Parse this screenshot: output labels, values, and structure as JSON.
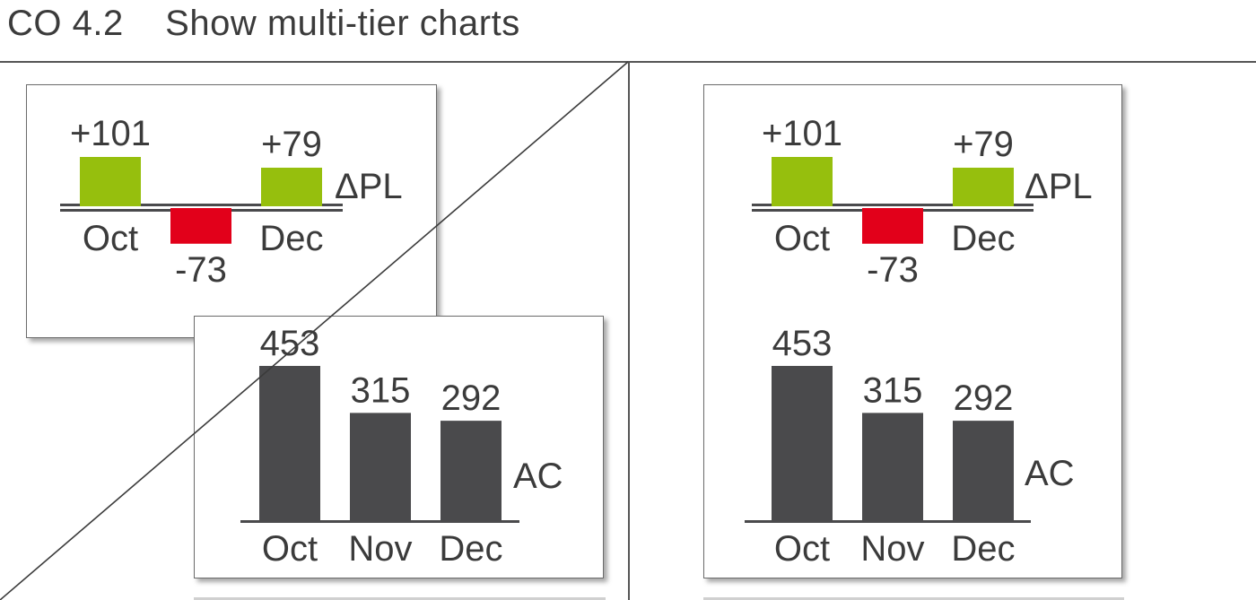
{
  "page": {
    "title": "CO 4.2    Show multi-tier charts"
  },
  "chart_data": [
    {
      "id": "left-delta",
      "type": "bar",
      "categories": [
        "Oct",
        "Nov",
        "Dec"
      ],
      "category_labels": [
        "Oct",
        "",
        "Dec"
      ],
      "values": [
        101,
        -73,
        79
      ],
      "data_labels": [
        "+101",
        "-73",
        "+79"
      ],
      "series_label": "ΔPL",
      "colors": {
        "positive": "#96bf0d",
        "negative": "#e2001a"
      }
    },
    {
      "id": "left-ac",
      "type": "bar",
      "categories": [
        "Oct",
        "Nov",
        "Dec"
      ],
      "values": [
        453,
        315,
        292
      ],
      "data_labels": [
        "453",
        "315",
        "292"
      ],
      "series_label": "AC",
      "colors": {
        "bar": "#4a4a4c"
      }
    },
    {
      "id": "right-delta",
      "type": "bar",
      "categories": [
        "Oct",
        "Nov",
        "Dec"
      ],
      "values": [
        101,
        -73,
        79
      ],
      "data_labels": [
        "+101",
        "-73",
        "+79"
      ],
      "series_label": "ΔPL",
      "colors": {
        "positive": "#96bf0d",
        "negative": "#e2001a"
      }
    },
    {
      "id": "right-ac",
      "type": "bar",
      "categories": [
        "Oct",
        "Nov",
        "Dec"
      ],
      "values": [
        453,
        315,
        292
      ],
      "data_labels": [
        "453",
        "315",
        "292"
      ],
      "series_label": "AC",
      "category_labels": [
        "Oct",
        "Nov",
        "Dec"
      ],
      "colors": {
        "bar": "#4a4a4c"
      }
    }
  ]
}
